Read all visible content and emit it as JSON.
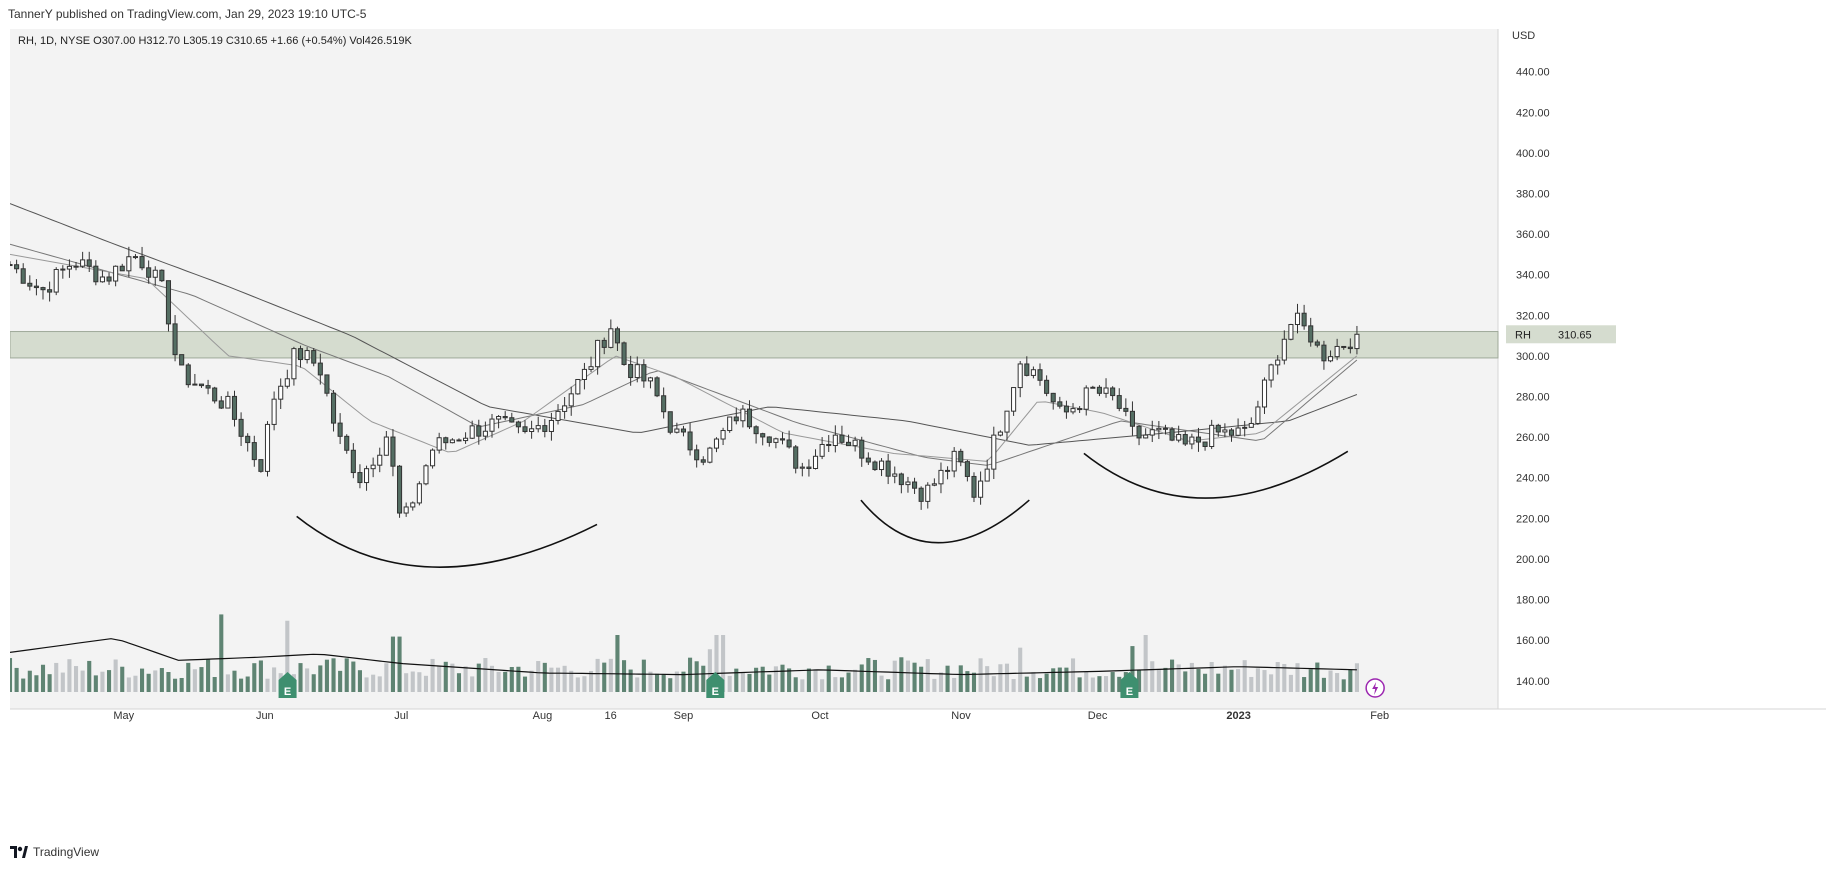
{
  "header": {
    "published_line": "TannerY published on TradingView.com, Jan 29, 2023 19:10 UTC-5"
  },
  "legend": {
    "symbol_line": "RH, 1D, NYSE  O307.00  H312.70  L305.19  C310.65  +1.66 (+0.54%)  Vol426.519K"
  },
  "footer": {
    "brand": "TradingView"
  },
  "colors": {
    "bull_candle": "#ffffff",
    "bear_candle": "#546e63",
    "volume_dark": "#5f8473",
    "volume_light": "#c2c5c8",
    "zone_fill": "#d5dccf",
    "background": "#f3f3f3",
    "event_badge": "#3e8f6f",
    "dividend_badge": "#9c27b0"
  },
  "chart_data": {
    "type": "candlestick",
    "symbol": "RH",
    "currency_label": "USD",
    "price_label": "RH",
    "last_price": "310.65",
    "ylim": [
      133,
      461
    ],
    "yticks": [
      "440.00",
      "420.00",
      "400.00",
      "380.00",
      "360.00",
      "340.00",
      "320.00",
      "300.00",
      "280.00",
      "260.00",
      "240.00",
      "220.00",
      "200.00",
      "180.00",
      "160.00",
      "140.00"
    ],
    "x_labels": [
      "May",
      "Jun",
      "Jul",
      "Aug",
      "16",
      "Sep",
      "Oct",
      "Nov",
      "Dec",
      "2023",
      "Feb"
    ],
    "x_label_dates": [
      "2022-05-01",
      "2022-06-01",
      "2022-07-01",
      "2022-08-01",
      "2022-08-16",
      "2022-09-01",
      "2022-10-01",
      "2022-11-01",
      "2022-12-01",
      "2023-01-01",
      "2023-02-01"
    ],
    "x_range": [
      "2022-04-06",
      "2023-02-27"
    ],
    "resistance_zone": [
      299,
      312
    ],
    "candle_anchors": [
      [
        "2022-04-06",
        345
      ],
      [
        "2022-04-13",
        332
      ],
      [
        "2022-04-20",
        347
      ],
      [
        "2022-04-27",
        338
      ],
      [
        "2022-05-03",
        350
      ],
      [
        "2022-05-06",
        345
      ],
      [
        "2022-05-10",
        330
      ],
      [
        "2022-05-13",
        292
      ],
      [
        "2022-05-18",
        285
      ],
      [
        "2022-05-24",
        275
      ],
      [
        "2022-05-31",
        245
      ],
      [
        "2022-06-03",
        280
      ],
      [
        "2022-06-08",
        302
      ],
      [
        "2022-06-13",
        295
      ],
      [
        "2022-06-17",
        260
      ],
      [
        "2022-06-22",
        240
      ],
      [
        "2022-06-28",
        262
      ],
      [
        "2022-07-01",
        215
      ],
      [
        "2022-07-08",
        255
      ],
      [
        "2022-07-15",
        262
      ],
      [
        "2022-07-22",
        267
      ],
      [
        "2022-07-28",
        260
      ],
      [
        "2022-08-03",
        270
      ],
      [
        "2022-08-10",
        290
      ],
      [
        "2022-08-16",
        315
      ],
      [
        "2022-08-19",
        296
      ],
      [
        "2022-08-25",
        285
      ],
      [
        "2022-08-30",
        262
      ],
      [
        "2022-09-06",
        250
      ],
      [
        "2022-09-13",
        272
      ],
      [
        "2022-09-20",
        262
      ],
      [
        "2022-09-27",
        245
      ],
      [
        "2022-10-04",
        263
      ],
      [
        "2022-10-11",
        252
      ],
      [
        "2022-10-18",
        242
      ],
      [
        "2022-10-24",
        232
      ],
      [
        "2022-10-31",
        250
      ],
      [
        "2022-11-04",
        232
      ],
      [
        "2022-11-09",
        262
      ],
      [
        "2022-11-14",
        298
      ],
      [
        "2022-11-18",
        290
      ],
      [
        "2022-11-23",
        270
      ],
      [
        "2022-11-30",
        283
      ],
      [
        "2022-12-05",
        278
      ],
      [
        "2022-12-09",
        260
      ],
      [
        "2022-12-14",
        262
      ],
      [
        "2022-12-20",
        255
      ],
      [
        "2022-12-27",
        262
      ],
      [
        "2023-01-03",
        262
      ],
      [
        "2023-01-06",
        280
      ],
      [
        "2023-01-10",
        305
      ],
      [
        "2023-01-13",
        318
      ],
      [
        "2023-01-17",
        310
      ],
      [
        "2023-01-19",
        300
      ],
      [
        "2023-01-24",
        306
      ],
      [
        "2023-01-27",
        310.65
      ]
    ],
    "candle_count": 205,
    "volume_ylim": [
      0,
      60
    ],
    "volume_highlights": [
      [
        "2022-05-23",
        49
      ],
      [
        "2022-06-06",
        45
      ],
      [
        "2022-06-30",
        35
      ],
      [
        "2022-08-18",
        36
      ],
      [
        "2022-09-09",
        36
      ],
      [
        "2022-09-07",
        27
      ],
      [
        "2022-11-14",
        28
      ],
      [
        "2022-12-12",
        36
      ],
      [
        "2022-12-09",
        29
      ]
    ],
    "vol_ma_anchors": [
      [
        "2022-04-06",
        25
      ],
      [
        "2022-04-29",
        34
      ],
      [
        "2022-05-13",
        20
      ],
      [
        "2022-05-31",
        22
      ],
      [
        "2022-06-13",
        24
      ],
      [
        "2022-07-01",
        18
      ],
      [
        "2022-08-01",
        12
      ],
      [
        "2022-09-01",
        11
      ],
      [
        "2022-10-01",
        14
      ],
      [
        "2022-11-01",
        11
      ],
      [
        "2022-12-01",
        13
      ],
      [
        "2023-01-01",
        16
      ],
      [
        "2023-01-27",
        14
      ]
    ],
    "earnings_markers": [
      "2022-06-06",
      "2022-09-08",
      "2022-12-08"
    ],
    "dividend_marker": "2023-01-31",
    "ma_fast_anchors": [
      [
        "2022-04-06",
        350
      ],
      [
        "2022-05-06",
        338
      ],
      [
        "2022-05-24",
        300
      ],
      [
        "2022-06-09",
        295
      ],
      [
        "2022-06-24",
        268
      ],
      [
        "2022-07-12",
        252
      ],
      [
        "2022-07-28",
        268
      ],
      [
        "2022-08-17",
        300
      ],
      [
        "2022-08-30",
        290
      ],
      [
        "2022-09-23",
        262
      ],
      [
        "2022-10-17",
        252
      ],
      [
        "2022-11-07",
        248
      ],
      [
        "2022-11-18",
        278
      ],
      [
        "2022-12-02",
        272
      ],
      [
        "2022-12-21",
        258
      ],
      [
        "2023-01-06",
        262
      ],
      [
        "2023-01-27",
        300
      ]
    ],
    "ma_mid_anchors": [
      [
        "2022-04-06",
        355
      ],
      [
        "2022-05-16",
        330
      ],
      [
        "2022-06-10",
        305
      ],
      [
        "2022-06-28",
        290
      ],
      [
        "2022-07-18",
        265
      ],
      [
        "2022-08-10",
        276
      ],
      [
        "2022-08-26",
        293
      ],
      [
        "2022-09-26",
        267
      ],
      [
        "2022-10-24",
        250
      ],
      [
        "2022-11-07",
        246
      ],
      [
        "2022-12-06",
        268
      ],
      [
        "2023-01-06",
        258
      ],
      [
        "2023-01-27",
        298
      ]
    ],
    "ma_slow_anchors": [
      [
        "2022-04-06",
        375
      ],
      [
        "2022-04-29",
        355
      ],
      [
        "2022-05-23",
        335
      ],
      [
        "2022-06-20",
        310
      ],
      [
        "2022-07-20",
        275
      ],
      [
        "2022-08-22",
        262
      ],
      [
        "2022-09-20",
        275
      ],
      [
        "2022-10-20",
        268
      ],
      [
        "2022-11-16",
        256
      ],
      [
        "2022-12-16",
        262
      ],
      [
        "2023-01-12",
        268
      ],
      [
        "2023-01-27",
        281
      ]
    ],
    "arcs": [
      {
        "from": [
          "2022-06-08",
          221
        ],
        "mid": [
          "2022-07-08",
          196
        ],
        "to": [
          "2022-08-13",
          217
        ]
      },
      {
        "from": [
          "2022-10-10",
          229
        ],
        "mid": [
          "2022-10-27",
          208
        ],
        "to": [
          "2022-11-16",
          229
        ]
      },
      {
        "from": [
          "2022-11-28",
          252
        ],
        "mid": [
          "2022-12-25",
          230
        ],
        "to": [
          "2023-01-25",
          253
        ]
      }
    ]
  }
}
